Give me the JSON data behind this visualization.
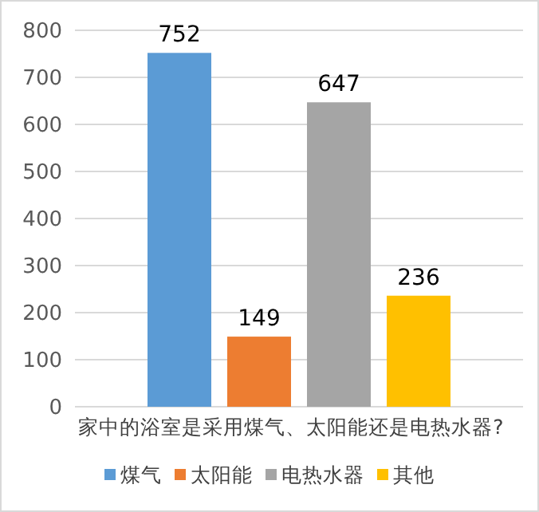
{
  "chart_data": {
    "type": "bar",
    "xlabel": "家中的浴室是采用煤气、太阳能还是电热水器?",
    "categories": [
      null
    ],
    "series": [
      {
        "name": "煤气",
        "color": "#5b9bd5",
        "values": [
          752
        ]
      },
      {
        "name": "太阳能",
        "color": "#ed7d31",
        "values": [
          149
        ]
      },
      {
        "name": "电热水器",
        "color": "#a5a5a5",
        "values": [
          647
        ]
      },
      {
        "name": "其他",
        "color": "#ffc000",
        "values": [
          236
        ]
      }
    ],
    "ylim": [
      0,
      800
    ],
    "yticks": [
      0,
      100,
      200,
      300,
      400,
      500,
      600,
      700,
      800
    ],
    "grid": "y",
    "data_labels": true,
    "legend": "bottom"
  }
}
